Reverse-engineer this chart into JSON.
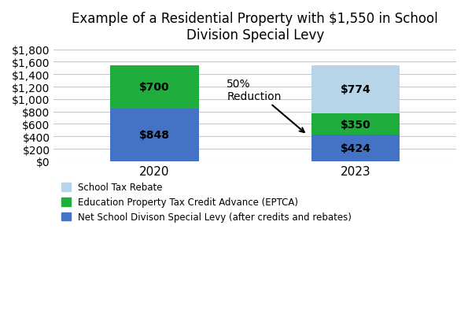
{
  "title": "Example of a Residential Property with $1,550 in School\nDivision Special Levy",
  "years": [
    "2020",
    "2023"
  ],
  "net_levy": [
    848,
    424
  ],
  "eptca": [
    700,
    350
  ],
  "rebate": [
    0,
    774
  ],
  "colors": {
    "net_levy": "#4472C4",
    "eptca": "#1FAD3E",
    "rebate": "#B8D4E8"
  },
  "bar_positions": [
    0.25,
    0.75
  ],
  "bar_width": 0.22,
  "ylim": [
    0,
    1800
  ],
  "yticks": [
    0,
    200,
    400,
    600,
    800,
    1000,
    1200,
    1400,
    1600,
    1800
  ],
  "annotation_text": "50%\nReduction",
  "legend_labels": [
    "School Tax Rebate",
    "Education Property Tax Credit Advance (EPTCA)",
    "Net School Divison Special Levy (after credits and rebates)"
  ],
  "background_color": "#FFFFFF",
  "grid_color": "#C8C8C8",
  "font_color": "#000000",
  "label_fontsize": 10,
  "title_fontsize": 12
}
